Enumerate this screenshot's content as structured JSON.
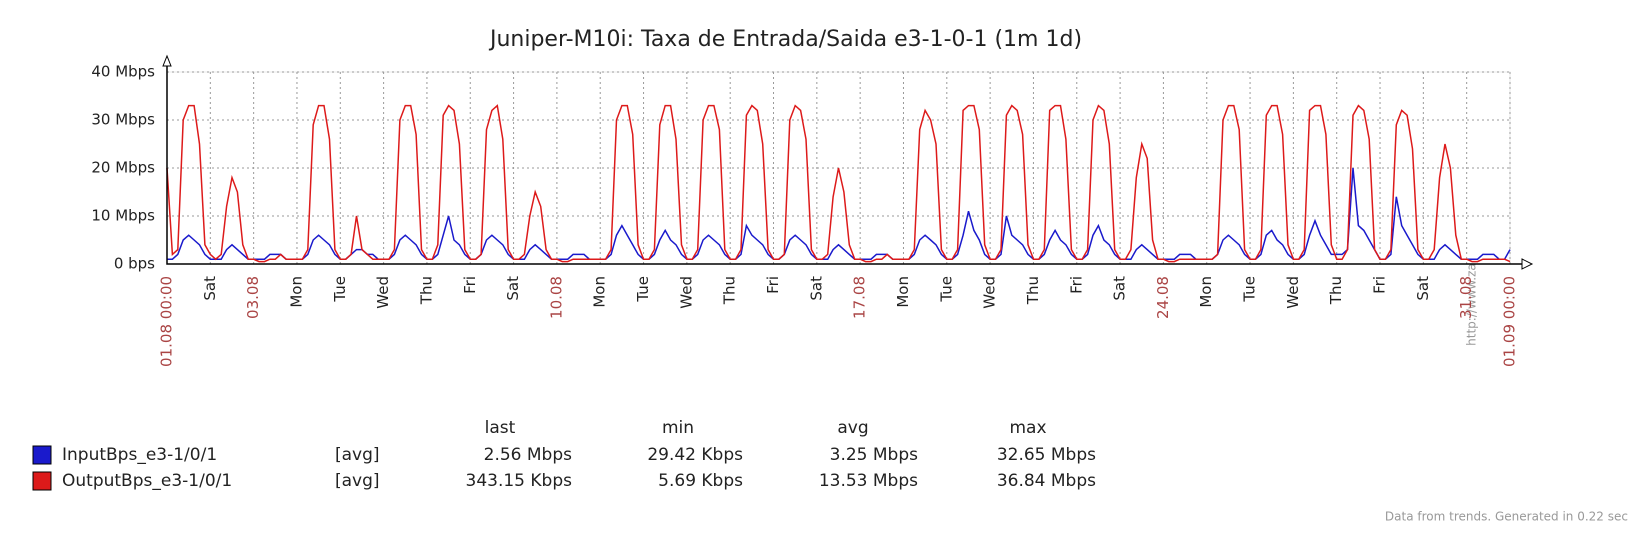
{
  "chart_data": {
    "type": "line",
    "title": "Juniper-M10i: Taxa de Entrada/Saida e3-1-0-1 (1m 1d)",
    "xlim": [
      0,
      31
    ],
    "xticks": [
      {
        "value": 1,
        "label": "Sat"
      },
      {
        "value": 3,
        "label": "Mon"
      },
      {
        "value": 4,
        "label": "Tue"
      },
      {
        "value": 5,
        "label": "Wed"
      },
      {
        "value": 6,
        "label": "Thu"
      },
      {
        "value": 7,
        "label": "Fri"
      },
      {
        "value": 8,
        "label": "Sat"
      },
      {
        "value": 10,
        "label": "Mon"
      },
      {
        "value": 11,
        "label": "Tue"
      },
      {
        "value": 12,
        "label": "Wed"
      },
      {
        "value": 13,
        "label": "Thu"
      },
      {
        "value": 14,
        "label": "Fri"
      },
      {
        "value": 15,
        "label": "Sat"
      },
      {
        "value": 17,
        "label": "Mon"
      },
      {
        "value": 18,
        "label": "Tue"
      },
      {
        "value": 19,
        "label": "Wed"
      },
      {
        "value": 20,
        "label": "Thu"
      },
      {
        "value": 21,
        "label": "Fri"
      },
      {
        "value": 22,
        "label": "Sat"
      },
      {
        "value": 24,
        "label": "Mon"
      },
      {
        "value": 25,
        "label": "Tue"
      },
      {
        "value": 26,
        "label": "Wed"
      },
      {
        "value": 27,
        "label": "Thu"
      },
      {
        "value": 28,
        "label": "Fri"
      },
      {
        "value": 29,
        "label": "Sat"
      }
    ],
    "xticks_major": [
      {
        "value": 0,
        "label": "01.08 00:00"
      },
      {
        "value": 2,
        "label": "03.08"
      },
      {
        "value": 9,
        "label": "10.08"
      },
      {
        "value": 16,
        "label": "17.08"
      },
      {
        "value": 23,
        "label": "24.08"
      },
      {
        "value": 30,
        "label": "31.08"
      },
      {
        "value": 31,
        "label": "01.09 00:00"
      }
    ],
    "major_tick_color": "#aa4444",
    "ylim": [
      0,
      40
    ],
    "yticks": [
      {
        "value": 0,
        "label": "0 bps"
      },
      {
        "value": 10,
        "label": "10 Mbps"
      },
      {
        "value": 20,
        "label": "20 Mbps"
      },
      {
        "value": 30,
        "label": "30 Mbps"
      },
      {
        "value": 40,
        "label": "40 Mbps"
      }
    ],
    "grid": true,
    "legend_columns": [
      "last",
      "min",
      "avg",
      "max"
    ],
    "series": [
      {
        "name": "InputBps_e3-1/0/1",
        "color": "#1a1acc",
        "function": "[avg]",
        "stats": [
          "2.56 Mbps",
          "29.42 Kbps",
          "3.25 Mbps",
          "32.65 Mbps"
        ],
        "values": [
          1,
          1,
          2,
          5,
          6,
          5,
          4,
          2,
          1,
          1,
          1,
          3,
          4,
          3,
          2,
          1,
          1,
          1,
          1,
          2,
          2,
          2,
          1,
          1,
          1,
          1,
          2,
          5,
          6,
          5,
          4,
          2,
          1,
          1,
          2,
          3,
          3,
          2,
          2,
          1,
          1,
          1,
          2,
          5,
          6,
          5,
          4,
          2,
          1,
          1,
          2,
          6,
          10,
          5,
          4,
          2,
          1,
          1,
          2,
          5,
          6,
          5,
          4,
          2,
          1,
          1,
          1,
          3,
          4,
          3,
          2,
          1,
          1,
          1,
          1,
          2,
          2,
          2,
          1,
          1,
          1,
          1,
          2,
          6,
          8,
          6,
          4,
          2,
          1,
          1,
          2,
          5,
          7,
          5,
          4,
          2,
          1,
          1,
          2,
          5,
          6,
          5,
          4,
          2,
          1,
          1,
          2,
          8,
          6,
          5,
          4,
          2,
          1,
          1,
          2,
          5,
          6,
          5,
          4,
          2,
          1,
          1,
          1,
          3,
          4,
          3,
          2,
          1,
          1,
          1,
          1,
          2,
          2,
          2,
          1,
          1,
          1,
          1,
          2,
          5,
          6,
          5,
          4,
          2,
          1,
          1,
          2,
          6,
          11,
          7,
          5,
          2,
          1,
          1,
          2,
          10,
          6,
          5,
          4,
          2,
          1,
          1,
          2,
          5,
          7,
          5,
          4,
          2,
          1,
          1,
          2,
          6,
          8,
          5,
          4,
          2,
          1,
          1,
          1,
          3,
          4,
          3,
          2,
          1,
          1,
          1,
          1,
          2,
          2,
          2,
          1,
          1,
          1,
          1,
          2,
          5,
          6,
          5,
          4,
          2,
          1,
          1,
          2,
          6,
          7,
          5,
          4,
          2,
          1,
          1,
          2,
          6,
          9,
          6,
          4,
          2,
          2,
          2,
          3,
          20,
          8,
          7,
          5,
          3,
          1,
          1,
          2,
          14,
          8,
          6,
          4,
          2,
          1,
          1,
          1,
          3,
          4,
          3,
          2,
          1,
          1,
          1,
          1,
          2,
          2,
          2,
          1,
          1,
          3
        ]
      },
      {
        "name": "OutputBps_e3-1/0/1",
        "color": "#dd1a1a",
        "function": "[avg]",
        "stats": [
          "343.15 Kbps",
          "5.69 Kbps",
          "13.53 Mbps",
          "36.84 Mbps"
        ],
        "values": [
          20,
          2,
          3,
          30,
          33,
          33,
          25,
          4,
          2,
          1,
          2,
          12,
          18,
          15,
          4,
          1,
          1,
          0.5,
          0.5,
          1,
          1,
          2,
          1,
          1,
          1,
          1,
          3,
          29,
          33,
          33,
          26,
          3,
          1,
          1,
          2,
          10,
          3,
          2,
          1,
          1,
          1,
          1,
          3,
          30,
          33,
          33,
          27,
          3,
          1,
          1,
          4,
          31,
          33,
          32,
          25,
          3,
          1,
          1,
          2,
          28,
          32,
          33,
          26,
          3,
          1,
          1,
          2,
          10,
          15,
          12,
          3,
          1,
          1,
          0.5,
          0.5,
          1,
          1,
          1,
          1,
          1,
          1,
          1,
          3,
          30,
          33,
          33,
          27,
          4,
          1,
          1,
          3,
          29,
          33,
          33,
          26,
          4,
          1,
          1,
          3,
          30,
          33,
          33,
          28,
          3,
          1,
          1,
          3,
          31,
          33,
          32,
          25,
          3,
          1,
          1,
          2,
          30,
          33,
          32,
          26,
          3,
          1,
          1,
          2,
          14,
          20,
          15,
          4,
          1,
          1,
          0.5,
          0.5,
          1,
          1,
          2,
          1,
          1,
          1,
          1,
          3,
          28,
          32,
          30,
          25,
          3,
          1,
          1,
          3,
          32,
          33,
          33,
          28,
          4,
          1,
          1,
          3,
          31,
          33,
          32,
          27,
          4,
          1,
          1,
          3,
          32,
          33,
          33,
          26,
          3,
          1,
          1,
          3,
          30,
          33,
          32,
          25,
          3,
          1,
          1,
          3,
          18,
          25,
          22,
          5,
          1,
          1,
          0.5,
          0.5,
          1,
          1,
          1,
          1,
          1,
          1,
          1,
          2,
          30,
          33,
          33,
          28,
          3,
          1,
          1,
          3,
          31,
          33,
          33,
          27,
          4,
          1,
          1,
          3,
          32,
          33,
          33,
          27,
          4,
          1,
          1,
          3,
          31,
          33,
          32,
          26,
          3,
          1,
          1,
          3,
          29,
          32,
          31,
          24,
          3,
          1,
          1,
          3,
          18,
          25,
          20,
          6,
          1,
          1,
          0.5,
          0.5,
          1,
          1,
          1,
          1,
          1,
          0.5
        ]
      }
    ],
    "watermark": "http://www.zabbix.com",
    "footer": "Data from trends. Generated in 0.22 sec"
  }
}
